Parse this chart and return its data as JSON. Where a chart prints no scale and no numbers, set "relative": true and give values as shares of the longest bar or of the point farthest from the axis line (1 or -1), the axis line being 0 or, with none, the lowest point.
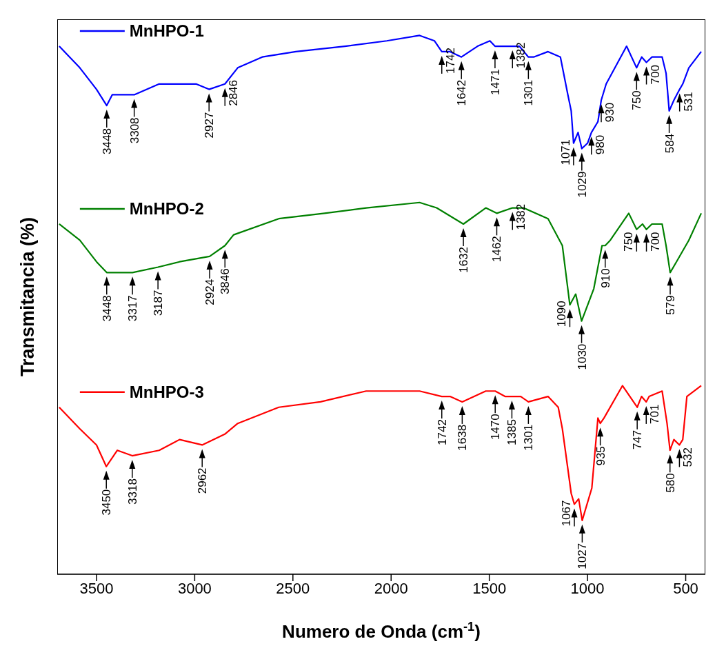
{
  "chart_data": {
    "type": "line",
    "relative": true,
    "xlabel": "Numero de Onda (cm$^{-1}$)",
    "ylabel": "Transmitancia (%)",
    "xlim": [
      3700,
      400
    ],
    "xticks": [
      3500,
      3000,
      2500,
      2000,
      1500,
      1000,
      500
    ],
    "legend": "top left",
    "line_style": "solid",
    "series": [
      {
        "name": "MnHPO-1",
        "color": "#0000ff",
        "x": [
          3690,
          3585,
          3500,
          3448,
          3420,
          3373,
          3308,
          3181,
          3077,
          2993,
          2927,
          2846,
          2781,
          2656,
          2485,
          2235,
          2022,
          1855,
          1779,
          1742,
          1700,
          1642,
          1560,
          1497,
          1471,
          1441,
          1382,
          1347,
          1301,
          1274,
          1201,
          1138,
          1100,
          1083,
          1071,
          1048,
          1029,
          1000,
          980,
          947,
          930,
          905,
          801,
          750,
          724,
          700,
          672,
          620,
          600,
          584,
          560,
          531,
          515,
          484,
          421
        ],
        "values": [
          0.98,
          0.94,
          0.9,
          0.87,
          0.89,
          0.89,
          0.89,
          0.91,
          0.91,
          0.91,
          0.9,
          0.91,
          0.94,
          0.96,
          0.97,
          0.98,
          0.99,
          1.0,
          0.99,
          0.97,
          0.97,
          0.96,
          0.98,
          0.99,
          0.98,
          0.98,
          0.98,
          0.98,
          0.96,
          0.96,
          0.97,
          0.96,
          0.89,
          0.86,
          0.8,
          0.82,
          0.79,
          0.8,
          0.82,
          0.84,
          0.88,
          0.91,
          0.98,
          0.94,
          0.96,
          0.95,
          0.96,
          0.96,
          0.93,
          0.86,
          0.88,
          0.9,
          0.91,
          0.94,
          0.97
        ]
      },
      {
        "name": "MnHPO-2",
        "color": "#008000",
        "x": [
          3690,
          3585,
          3500,
          3448,
          3394,
          3317,
          3187,
          3077,
          2924,
          2846,
          2802,
          2572,
          2339,
          2127,
          1855,
          1768,
          1632,
          1518,
          1462,
          1382,
          1326,
          1201,
          1128,
          1090,
          1060,
          1030,
          968,
          926,
          910,
          884,
          790,
          750,
          720,
          700,
          672,
          620,
          600,
          579,
          547,
          484,
          421
        ],
        "values": [
          0.65,
          0.62,
          0.58,
          0.56,
          0.56,
          0.56,
          0.57,
          0.58,
          0.59,
          0.61,
          0.63,
          0.66,
          0.67,
          0.68,
          0.69,
          0.68,
          0.65,
          0.68,
          0.67,
          0.68,
          0.68,
          0.66,
          0.61,
          0.5,
          0.52,
          0.47,
          0.53,
          0.61,
          0.61,
          0.62,
          0.67,
          0.64,
          0.65,
          0.64,
          0.65,
          0.65,
          0.61,
          0.56,
          0.58,
          0.62,
          0.67
        ]
      },
      {
        "name": "MnHPO-3",
        "color": "#ff0000",
        "x": [
          3690,
          3585,
          3500,
          3450,
          3394,
          3318,
          3181,
          3077,
          2962,
          2847,
          2781,
          2572,
          2360,
          2127,
          1855,
          1742,
          1700,
          1638,
          1518,
          1470,
          1420,
          1385,
          1340,
          1301,
          1201,
          1149,
          1128,
          1083,
          1067,
          1045,
          1027,
          978,
          947,
          935,
          916,
          822,
          747,
          725,
          701,
          686,
          620,
          595,
          580,
          560,
          532,
          515,
          494,
          421
        ],
        "values": [
          0.31,
          0.27,
          0.24,
          0.2,
          0.23,
          0.22,
          0.23,
          0.25,
          0.24,
          0.26,
          0.28,
          0.31,
          0.32,
          0.34,
          0.34,
          0.33,
          0.33,
          0.32,
          0.34,
          0.34,
          0.33,
          0.33,
          0.33,
          0.32,
          0.33,
          0.31,
          0.27,
          0.15,
          0.13,
          0.14,
          0.1,
          0.16,
          0.29,
          0.28,
          0.29,
          0.35,
          0.31,
          0.33,
          0.32,
          0.33,
          0.34,
          0.28,
          0.23,
          0.25,
          0.24,
          0.25,
          0.33,
          0.35
        ]
      }
    ],
    "annotations": [
      {
        "text": "3448",
        "x": 3448,
        "y": 0.87
      },
      {
        "text": "3308",
        "x": 3308,
        "y": 0.89
      },
      {
        "text": "2927",
        "x": 2927,
        "y": 0.9
      },
      {
        "text": "2846",
        "x": 2846,
        "y": 0.91
      },
      {
        "text": "1742",
        "x": 1742,
        "y": 0.97
      },
      {
        "text": "1642",
        "x": 1642,
        "y": 0.96
      },
      {
        "text": "1471",
        "x": 1471,
        "y": 0.98
      },
      {
        "text": "1382",
        "x": 1382,
        "y": 0.98
      },
      {
        "text": "1301",
        "x": 1301,
        "y": 0.96
      },
      {
        "text": "1071",
        "x": 1071,
        "y": 0.8
      },
      {
        "text": "1029",
        "x": 1029,
        "y": 0.79
      },
      {
        "text": "980",
        "x": 980,
        "y": 0.82
      },
      {
        "text": "930",
        "x": 930,
        "y": 0.88
      },
      {
        "text": "750",
        "x": 750,
        "y": 0.94
      },
      {
        "text": "700",
        "x": 700,
        "y": 0.95
      },
      {
        "text": "584",
        "x": 584,
        "y": 0.86
      },
      {
        "text": "531",
        "x": 531,
        "y": 0.9
      },
      {
        "text": "3448",
        "x": 3448,
        "y": 0.56
      },
      {
        "text": "3317",
        "x": 3317,
        "y": 0.56
      },
      {
        "text": "3187",
        "x": 3187,
        "y": 0.57
      },
      {
        "text": "2924",
        "x": 2924,
        "y": 0.59
      },
      {
        "text": "3846",
        "x": 2846,
        "y": 0.61
      },
      {
        "text": "1632",
        "x": 1632,
        "y": 0.65
      },
      {
        "text": "1462",
        "x": 1462,
        "y": 0.67
      },
      {
        "text": "1382",
        "x": 1382,
        "y": 0.68
      },
      {
        "text": "1090",
        "x": 1090,
        "y": 0.5
      },
      {
        "text": "1030",
        "x": 1030,
        "y": 0.47
      },
      {
        "text": "910",
        "x": 910,
        "y": 0.61
      },
      {
        "text": "750",
        "x": 750,
        "y": 0.64
      },
      {
        "text": "700",
        "x": 700,
        "y": 0.64
      },
      {
        "text": "579",
        "x": 579,
        "y": 0.56
      },
      {
        "text": "3450",
        "x": 3450,
        "y": 0.2
      },
      {
        "text": "3318",
        "x": 3318,
        "y": 0.22
      },
      {
        "text": "2962",
        "x": 2962,
        "y": 0.24
      },
      {
        "text": "1742",
        "x": 1742,
        "y": 0.33
      },
      {
        "text": "1638",
        "x": 1638,
        "y": 0.32
      },
      {
        "text": "1470",
        "x": 1470,
        "y": 0.34
      },
      {
        "text": "1385",
        "x": 1385,
        "y": 0.33
      },
      {
        "text": "1301",
        "x": 1301,
        "y": 0.32
      },
      {
        "text": "1067",
        "x": 1067,
        "y": 0.13
      },
      {
        "text": "1027",
        "x": 1027,
        "y": 0.1
      },
      {
        "text": "935",
        "x": 935,
        "y": 0.28
      },
      {
        "text": "747",
        "x": 747,
        "y": 0.31
      },
      {
        "text": "701",
        "x": 701,
        "y": 0.32
      },
      {
        "text": "580",
        "x": 580,
        "y": 0.23
      },
      {
        "text": "532",
        "x": 532,
        "y": 0.24
      }
    ]
  }
}
